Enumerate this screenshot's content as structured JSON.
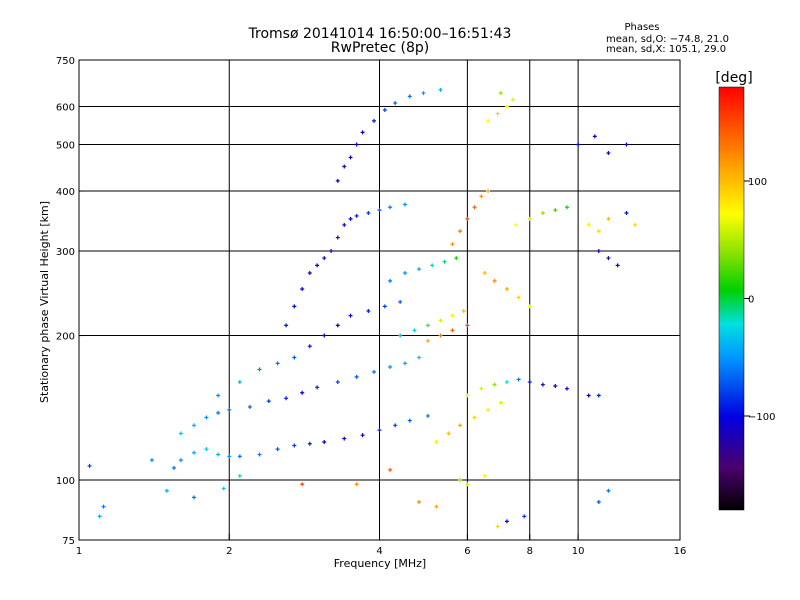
{
  "chart_data": {
    "type": "scatter",
    "title": "Tromsø 20141014 16:50:00–16:51:43",
    "subtitle": "RwPretec (8p)",
    "xlabel": "Frequency [MHz]",
    "ylabel": "Stationary phase Virtual Height [km]",
    "x_scale": "log",
    "y_scale": "log",
    "xlim": [
      1,
      16
    ],
    "ylim": [
      75,
      750
    ],
    "x_ticks": [
      1,
      2,
      4,
      6,
      8,
      10,
      16
    ],
    "y_ticks": [
      75,
      100,
      200,
      300,
      400,
      500,
      600,
      750
    ],
    "x_tick_labels": [
      "1",
      "2",
      "4",
      "6",
      "8",
      "10",
      "16"
    ],
    "y_tick_labels": [
      "75",
      "100",
      "200",
      "300",
      "400",
      "500",
      "600",
      "750"
    ],
    "grid": true,
    "grid_x": [
      2,
      4,
      6,
      8,
      10
    ],
    "grid_y": [
      100,
      200,
      300,
      400,
      500,
      600
    ],
    "phase_annotation": {
      "heading": "Phases",
      "line1": "mean, sd,O: −74.8, 21.0",
      "line2": "mean, sd,X: 105.1, 29.0"
    },
    "colorbar": {
      "label": "[deg]",
      "range": [
        -180,
        180
      ],
      "ticks": [
        100,
        0,
        -100
      ],
      "tick_labels": [
        "100",
        "0",
        "−100"
      ],
      "colormap": "rainbow"
    },
    "series": [
      {
        "points": [
          [
            1.05,
            107,
            -80
          ],
          [
            1.12,
            88,
            -60
          ],
          [
            1.1,
            84,
            -40
          ],
          [
            1.55,
            106,
            -60
          ],
          [
            1.6,
            110,
            -50
          ],
          [
            1.7,
            114,
            -40
          ],
          [
            1.8,
            116,
            -30
          ],
          [
            1.9,
            113,
            -40
          ],
          [
            2.0,
            112,
            -50
          ],
          [
            2.1,
            112,
            -60
          ],
          [
            2.3,
            113,
            -60
          ],
          [
            2.5,
            116,
            -70
          ],
          [
            2.7,
            118,
            -80
          ],
          [
            2.9,
            119,
            -90
          ],
          [
            3.1,
            120,
            -100
          ],
          [
            3.4,
            122,
            -110
          ],
          [
            3.7,
            124,
            -100
          ],
          [
            4.0,
            127,
            -90
          ],
          [
            4.3,
            130,
            -80
          ],
          [
            4.6,
            133,
            -70
          ],
          [
            5.0,
            136,
            -60
          ],
          [
            1.6,
            125,
            -30
          ],
          [
            1.7,
            130,
            -40
          ],
          [
            1.8,
            135,
            -50
          ],
          [
            1.9,
            138,
            -60
          ],
          [
            2.0,
            140,
            -60
          ],
          [
            2.2,
            142,
            -70
          ],
          [
            2.4,
            146,
            -80
          ],
          [
            2.6,
            148,
            -90
          ],
          [
            2.8,
            152,
            -100
          ],
          [
            3.0,
            156,
            -90
          ],
          [
            3.3,
            160,
            -80
          ],
          [
            3.6,
            164,
            -70
          ],
          [
            3.9,
            168,
            -60
          ],
          [
            4.2,
            172,
            -50
          ],
          [
            4.5,
            175,
            -40
          ],
          [
            4.8,
            180,
            -30
          ],
          [
            1.9,
            150,
            -50
          ],
          [
            2.1,
            160,
            -40
          ],
          [
            2.3,
            170,
            -60
          ],
          [
            2.5,
            175,
            -60
          ],
          [
            2.7,
            180,
            -70
          ],
          [
            2.9,
            190,
            -90
          ],
          [
            3.1,
            200,
            -100
          ],
          [
            3.3,
            210,
            -110
          ],
          [
            3.5,
            220,
            -100
          ],
          [
            3.8,
            225,
            -90
          ],
          [
            4.1,
            230,
            -80
          ],
          [
            4.4,
            235,
            -70
          ],
          [
            2.6,
            210,
            -90
          ],
          [
            2.7,
            230,
            -100
          ],
          [
            2.8,
            250,
            -110
          ],
          [
            2.9,
            270,
            -120
          ],
          [
            3.0,
            280,
            -110
          ],
          [
            3.1,
            290,
            -120
          ],
          [
            3.2,
            300,
            -110
          ],
          [
            3.3,
            320,
            -120
          ],
          [
            3.4,
            340,
            -110
          ],
          [
            3.5,
            350,
            -100
          ],
          [
            3.6,
            355,
            -90
          ],
          [
            3.8,
            360,
            -80
          ],
          [
            4.0,
            365,
            -70
          ],
          [
            4.2,
            370,
            -60
          ],
          [
            4.5,
            375,
            -50
          ],
          [
            3.3,
            420,
            -110
          ],
          [
            3.4,
            450,
            -120
          ],
          [
            3.5,
            470,
            -110
          ],
          [
            3.6,
            500,
            -100
          ],
          [
            3.7,
            530,
            -110
          ],
          [
            3.9,
            560,
            -90
          ],
          [
            4.1,
            590,
            -80
          ],
          [
            4.3,
            610,
            -70
          ],
          [
            4.6,
            630,
            -60
          ],
          [
            4.9,
            640,
            -50
          ],
          [
            5.3,
            650,
            -40
          ],
          [
            4.2,
            260,
            -60
          ],
          [
            4.5,
            270,
            -50
          ],
          [
            4.8,
            275,
            -40
          ],
          [
            5.1,
            280,
            -20
          ],
          [
            5.4,
            285,
            -10
          ],
          [
            5.7,
            290,
            10
          ],
          [
            4.4,
            200,
            -40
          ],
          [
            4.7,
            205,
            -20
          ],
          [
            5.0,
            210,
            30
          ],
          [
            5.3,
            215,
            60
          ],
          [
            5.6,
            220,
            80
          ],
          [
            5.9,
            225,
            100
          ],
          [
            5.0,
            195,
            110
          ],
          [
            5.3,
            200,
            130
          ],
          [
            5.6,
            205,
            140
          ],
          [
            6.0,
            210,
            150
          ],
          [
            5.2,
            120,
            80
          ],
          [
            5.5,
            125,
            100
          ],
          [
            5.8,
            130,
            110
          ],
          [
            6.2,
            135,
            90
          ],
          [
            6.6,
            140,
            80
          ],
          [
            7.0,
            145,
            60
          ],
          [
            5.6,
            310,
            120
          ],
          [
            5.8,
            330,
            130
          ],
          [
            6.0,
            350,
            150
          ],
          [
            6.2,
            370,
            140
          ],
          [
            6.4,
            390,
            120
          ],
          [
            6.6,
            400,
            110
          ],
          [
            6.0,
            150,
            80
          ],
          [
            6.4,
            155,
            60
          ],
          [
            6.8,
            158,
            40
          ],
          [
            7.2,
            160,
            -20
          ],
          [
            7.6,
            162,
            -60
          ],
          [
            8.0,
            160,
            -90
          ],
          [
            8.5,
            158,
            -110
          ],
          [
            9.0,
            157,
            -120
          ],
          [
            9.5,
            155,
            -110
          ],
          [
            10.5,
            150,
            -100
          ],
          [
            11.0,
            150,
            -90
          ],
          [
            6.5,
            270,
            100
          ],
          [
            6.8,
            260,
            120
          ],
          [
            7.2,
            250,
            110
          ],
          [
            7.6,
            240,
            90
          ],
          [
            8.0,
            230,
            70
          ],
          [
            6.6,
            560,
            70
          ],
          [
            6.9,
            580,
            90
          ],
          [
            7.2,
            600,
            80
          ],
          [
            7.4,
            620,
            60
          ],
          [
            7.0,
            640,
            40
          ],
          [
            7.5,
            340,
            70
          ],
          [
            8.0,
            350,
            60
          ],
          [
            8.5,
            360,
            40
          ],
          [
            9.0,
            365,
            20
          ],
          [
            9.5,
            370,
            10
          ],
          [
            10.5,
            340,
            80
          ],
          [
            11.0,
            330,
            90
          ],
          [
            11.5,
            350,
            100
          ],
          [
            12.5,
            360,
            110
          ],
          [
            13.0,
            340,
            90
          ],
          [
            11.0,
            300,
            -100
          ],
          [
            11.5,
            290,
            -120
          ],
          [
            12.0,
            280,
            -110
          ],
          [
            12.5,
            360,
            -90
          ],
          [
            10.0,
            500,
            -100
          ],
          [
            10.8,
            520,
            -110
          ],
          [
            11.5,
            480,
            -120
          ],
          [
            12.5,
            500,
            -100
          ],
          [
            5.8,
            100,
            40
          ],
          [
            6.0,
            98,
            60
          ],
          [
            6.5,
            102,
            80
          ],
          [
            4.8,
            90,
            120
          ],
          [
            5.2,
            88,
            110
          ],
          [
            1.4,
            110,
            -50
          ],
          [
            1.5,
            95,
            -40
          ],
          [
            1.7,
            92,
            -60
          ],
          [
            1.95,
            96,
            -30
          ],
          [
            2.1,
            102,
            -20
          ],
          [
            7.2,
            82,
            -100
          ],
          [
            7.8,
            84,
            -80
          ],
          [
            11.0,
            90,
            -70
          ],
          [
            11.5,
            95,
            -60
          ],
          [
            2.8,
            98,
            150
          ],
          [
            3.6,
            98,
            120
          ],
          [
            4.2,
            105,
            140
          ],
          [
            6.9,
            80,
            90
          ]
        ]
      }
    ]
  }
}
